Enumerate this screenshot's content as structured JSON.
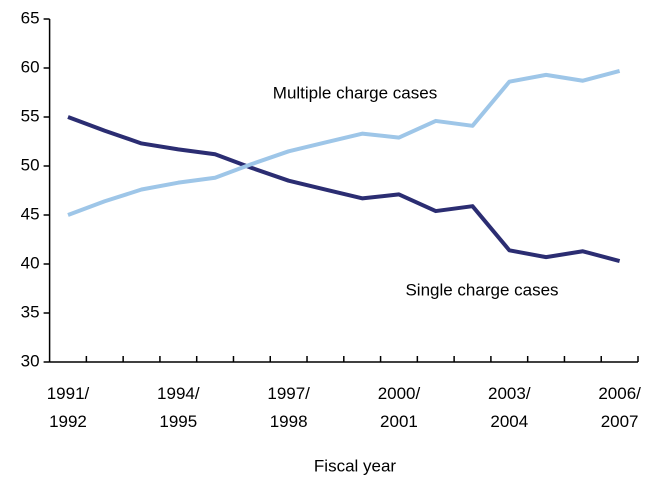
{
  "chart_data": {
    "type": "line",
    "x_label": "Fiscal year",
    "categories": [
      "1991/1992",
      null,
      null,
      "1994/1995",
      null,
      null,
      "1997/1998",
      null,
      null,
      "2000/2001",
      null,
      null,
      "2003/2004",
      null,
      null,
      "2006/2007"
    ],
    "series": [
      {
        "name": "Single charge cases",
        "color": "#2b2d72",
        "values": [
          55.0,
          53.6,
          52.3,
          51.7,
          51.2,
          49.8,
          48.5,
          47.6,
          46.7,
          47.1,
          45.4,
          45.9,
          41.4,
          40.7,
          41.3,
          40.3
        ]
      },
      {
        "name": "Multiple charge cases",
        "color": "#9ec6e8",
        "values": [
          45.0,
          46.4,
          47.6,
          48.3,
          48.8,
          50.2,
          51.5,
          52.4,
          53.3,
          52.9,
          54.6,
          54.1,
          58.6,
          59.3,
          58.7,
          59.7
        ]
      }
    ],
    "ylim": [
      30,
      65
    ],
    "yticks": [
      30,
      35,
      40,
      45,
      50,
      55,
      60,
      65
    ]
  }
}
